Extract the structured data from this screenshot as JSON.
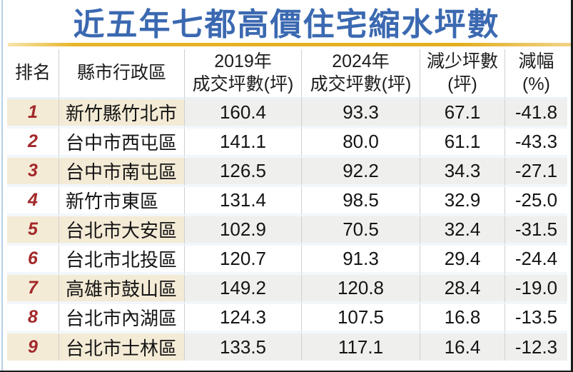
{
  "title": "近五年七都高價住宅縮水坪數",
  "colors": {
    "title_blue": "#3b69b1",
    "gold_rule": "#e6b426",
    "rank_red": "#a3282a",
    "odd_row_cream": "#f4ebd6",
    "odd_row_gray": "#eff0ee",
    "left_edge_blue": "#b5cfe4"
  },
  "table": {
    "columns": [
      {
        "line1": "排名",
        "line2": ""
      },
      {
        "line1": "縣市行政區",
        "line2": ""
      },
      {
        "line1": "2019年",
        "line2": "成交坪數(坪)"
      },
      {
        "line1": "2024年",
        "line2": "成交坪數(坪)"
      },
      {
        "line1": "減少坪數",
        "line2": "(坪)"
      },
      {
        "line1": "減幅",
        "line2": "(%)"
      }
    ],
    "rows": [
      {
        "rank": "1",
        "district": "新竹縣竹北市",
        "y2019": "160.4",
        "y2024": "93.3",
        "decrease": "67.1",
        "pct": "-41.8"
      },
      {
        "rank": "2",
        "district": "台中市西屯區",
        "y2019": "141.1",
        "y2024": "80.0",
        "decrease": "61.1",
        "pct": "-43.3"
      },
      {
        "rank": "3",
        "district": "台中市南屯區",
        "y2019": "126.5",
        "y2024": "92.2",
        "decrease": "34.3",
        "pct": "-27.1"
      },
      {
        "rank": "4",
        "district": "新竹市東區",
        "y2019": "131.4",
        "y2024": "98.5",
        "decrease": "32.9",
        "pct": "-25.0"
      },
      {
        "rank": "5",
        "district": "台北市大安區",
        "y2019": "102.9",
        "y2024": "70.5",
        "decrease": "32.4",
        "pct": "-31.5"
      },
      {
        "rank": "6",
        "district": "台北市北投區",
        "y2019": "120.7",
        "y2024": "91.3",
        "decrease": "29.4",
        "pct": "-24.4"
      },
      {
        "rank": "7",
        "district": "高雄市鼓山區",
        "y2019": "149.2",
        "y2024": "120.8",
        "decrease": "28.4",
        "pct": "-19.0"
      },
      {
        "rank": "8",
        "district": "台北市內湖區",
        "y2019": "124.3",
        "y2024": "107.5",
        "decrease": "16.8",
        "pct": "-13.5"
      },
      {
        "rank": "9",
        "district": "台北市士林區",
        "y2019": "133.5",
        "y2024": "117.1",
        "decrease": "16.4",
        "pct": "-12.3"
      }
    ]
  },
  "chart_data": {
    "type": "table",
    "title": "近五年七都高價住宅縮水坪數",
    "columns": [
      "排名",
      "縣市行政區",
      "2019年成交坪數(坪)",
      "2024年成交坪數(坪)",
      "減少坪數(坪)",
      "減幅(%)"
    ],
    "rows": [
      [
        1,
        "新竹縣竹北市",
        160.4,
        93.3,
        67.1,
        -41.8
      ],
      [
        2,
        "台中市西屯區",
        141.1,
        80.0,
        61.1,
        -43.3
      ],
      [
        3,
        "台中市南屯區",
        126.5,
        92.2,
        34.3,
        -27.1
      ],
      [
        4,
        "新竹市東區",
        131.4,
        98.5,
        32.9,
        -25.0
      ],
      [
        5,
        "台北市大安區",
        102.9,
        70.5,
        32.4,
        -31.5
      ],
      [
        6,
        "台北市北投區",
        120.7,
        91.3,
        29.4,
        -24.4
      ],
      [
        7,
        "高雄市鼓山區",
        149.2,
        120.8,
        28.4,
        -19.0
      ],
      [
        8,
        "台北市內湖區",
        124.3,
        107.5,
        16.8,
        -13.5
      ],
      [
        9,
        "台北市士林區",
        133.5,
        117.1,
        16.4,
        -12.3
      ]
    ]
  }
}
